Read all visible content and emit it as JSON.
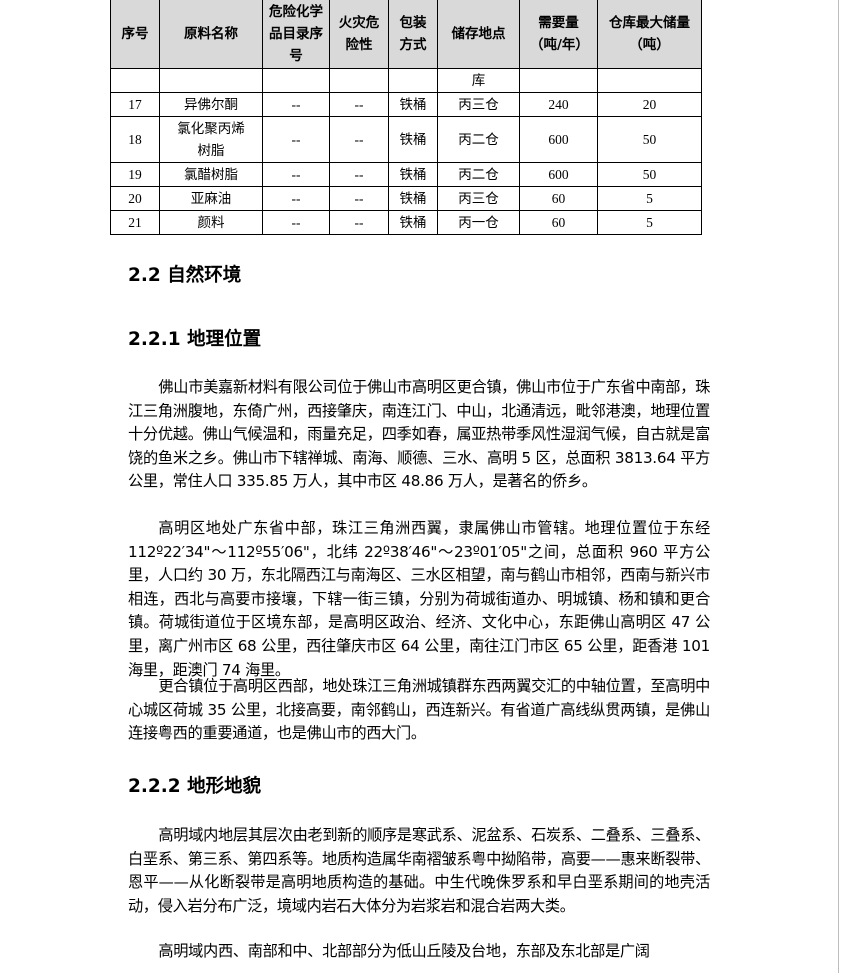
{
  "table": {
    "headers": [
      "序号",
      "原料名称",
      "危险化学品目录序号",
      "火灾危险性",
      "包装方式",
      "储存地点",
      "需要量（吨/年）",
      "仓库最大储量（吨）"
    ],
    "continuation_row": [
      "",
      "",
      "",
      "",
      "",
      "库",
      "",
      ""
    ],
    "rows": [
      [
        "17",
        "异佛尔酮",
        "--",
        "--",
        "铁桶",
        "丙三仓",
        "240",
        "20"
      ],
      [
        "18",
        "氯化聚丙烯树脂",
        "--",
        "--",
        "铁桶",
        "丙二仓",
        "600",
        "50"
      ],
      [
        "19",
        "氯醋树脂",
        "--",
        "--",
        "铁桶",
        "丙二仓",
        "600",
        "50"
      ],
      [
        "20",
        "亚麻油",
        "--",
        "--",
        "铁桶",
        "丙三仓",
        "60",
        "5"
      ],
      [
        "21",
        "颜料",
        "--",
        "--",
        "铁桶",
        "丙一仓",
        "60",
        "5"
      ]
    ]
  },
  "section_2_2": {
    "title": "2.2 自然环境"
  },
  "section_2_2_1": {
    "title": "2.2.1 地理位置",
    "paragraphs": [
      "佛山市美嘉新材料有限公司位于佛山市高明区更合镇，佛山市位于广东省中南部，珠江三角洲腹地，东倚广州，西接肇庆，南连江门、中山，北通清远，毗邻港澳，地理位置十分优越。佛山气候温和，雨量充足，四季如春，属亚热带季风性湿润气候，自古就是富饶的鱼米之乡。佛山市下辖禅城、南海、顺德、三水、高明 5 区，总面积 3813.64 平方公里，常住人口 335.85 万人，其中市区 48.86 万人，是著名的侨乡。",
      "高明区地处广东省中部，珠江三角洲西翼，隶属佛山市管辖。地理位置位于东经 112º22′34\"～112º55′06\"，北纬 22º38′46\"～23º01′05\"之间，总面积 960 平方公里，人口约 30 万，东北隔西江与南海区、三水区相望，南与鹤山市相邻，西南与新兴市相连，西北与高要市接壤，下辖一街三镇，分别为荷城街道办、明城镇、杨和镇和更合镇。荷城街道位于区境东部，是高明区政治、经济、文化中心，东距佛山高明区 47 公里，离广州市区 68 公里，西往肇庆市区 64 公里，南往江门市区 65 公里，距香港 101 海里，距澳门 74 海里。",
      "更合镇位于高明区西部，地处珠江三角洲城镇群东西两翼交汇的中轴位置，至高明中心城区荷城 35 公里，北接高要，南邻鹤山，西连新兴。有省道广高线纵贯两镇，是佛山连接粤西的重要通道，也是佛山市的西大门。"
    ]
  },
  "section_2_2_2": {
    "title": "2.2.2 地形地貌",
    "paragraphs": [
      "高明域内地层其层次由老到新的顺序是寒武系、泥盆系、石炭系、二叠系、三叠系、白垩系、第三系、第四系等。地质构造属华南褶皱系粤中拗陷带，高要——惠来断裂带、恩平——从化断裂带是高明地质构造的基础。中生代晚侏罗系和早白垩系期间的地壳活动，侵入岩分布广泛，境域内岩石大体分为岩浆岩和混合岩两大类。",
      "高明域内西、南部和中、北部部分为低山丘陵及台地，东部及东北部是广阔"
    ]
  }
}
